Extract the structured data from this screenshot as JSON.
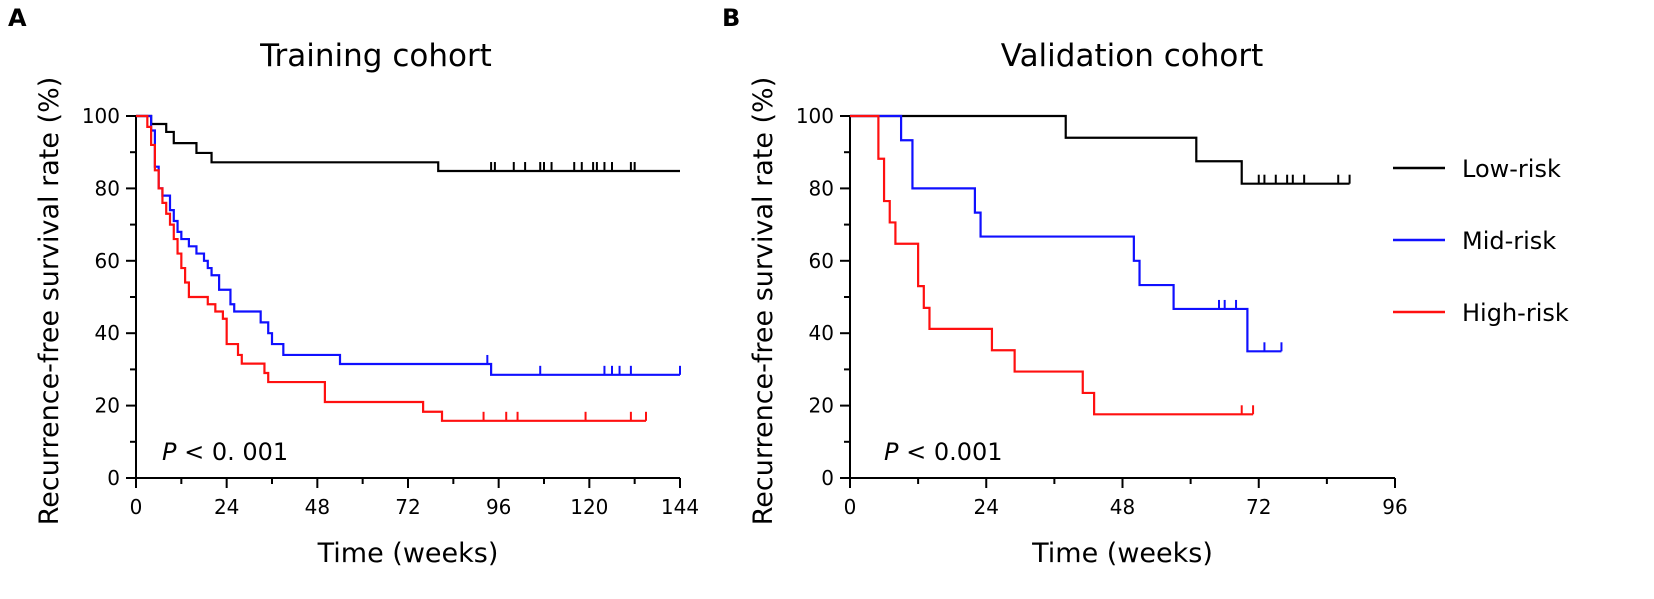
{
  "chart_data": [
    {
      "type": "line",
      "panel": "A",
      "title": "Training cohort",
      "xlabel": "Time (weeks)",
      "ylabel": "Recurrence-free survival rate (%)",
      "xlim": [
        0,
        144
      ],
      "ylim": [
        0,
        100
      ],
      "xticks": [
        0,
        24,
        48,
        72,
        96,
        120,
        144
      ],
      "yticks": [
        0,
        20,
        40,
        60,
        80,
        100
      ],
      "annotation": {
        "italic": "P",
        "text": " < 0. 001"
      },
      "series": [
        {
          "name": "Low-risk",
          "color": "#000000",
          "steps": [
            [
              0,
              100
            ],
            [
              4,
              97.8
            ],
            [
              8,
              95.6
            ],
            [
              10,
              92.5
            ],
            [
              16,
              89.8
            ],
            [
              20,
              87.2
            ],
            [
              80,
              84.8
            ],
            [
              144,
              84.8
            ]
          ],
          "censors": [
            94,
            95,
            100,
            103,
            107,
            108,
            110,
            116,
            118,
            121,
            122,
            124,
            126,
            131,
            132
          ]
        },
        {
          "name": "Mid-risk",
          "color": "#1010ff",
          "steps": [
            [
              0,
              100
            ],
            [
              4,
              96
            ],
            [
              5,
              86
            ],
            [
              6,
              80
            ],
            [
              7,
              78
            ],
            [
              9,
              74
            ],
            [
              10,
              71
            ],
            [
              11,
              68
            ],
            [
              12,
              66
            ],
            [
              14,
              64
            ],
            [
              16,
              62
            ],
            [
              18,
              60
            ],
            [
              19,
              58
            ],
            [
              20,
              56
            ],
            [
              22,
              52
            ],
            [
              25,
              48
            ],
            [
              26,
              46
            ],
            [
              33,
              43
            ],
            [
              35,
              40
            ],
            [
              36,
              37
            ],
            [
              39,
              34
            ],
            [
              54,
              31.5
            ],
            [
              94,
              28.5
            ],
            [
              144,
              28.5
            ]
          ],
          "censors": [
            93,
            107,
            124,
            126,
            128,
            131,
            144
          ]
        },
        {
          "name": "High-risk",
          "color": "#ff1010",
          "steps": [
            [
              0,
              100
            ],
            [
              3,
              97
            ],
            [
              4,
              92
            ],
            [
              5,
              85
            ],
            [
              6,
              80
            ],
            [
              7,
              76
            ],
            [
              8,
              73
            ],
            [
              9,
              70
            ],
            [
              10,
              66
            ],
            [
              11,
              62
            ],
            [
              12,
              58
            ],
            [
              13,
              54
            ],
            [
              14,
              50
            ],
            [
              19,
              48
            ],
            [
              21,
              46
            ],
            [
              23,
              44
            ],
            [
              24,
              37
            ],
            [
              27,
              34
            ],
            [
              28,
              31.6
            ],
            [
              34,
              29
            ],
            [
              35,
              26.5
            ],
            [
              50,
              21
            ],
            [
              76,
              18.3
            ],
            [
              81,
              15.8
            ],
            [
              135,
              15.8
            ]
          ],
          "censors": [
            92,
            98,
            101,
            119,
            131,
            135
          ]
        }
      ]
    },
    {
      "type": "line",
      "panel": "B",
      "title": "Validation cohort",
      "xlabel": "Time (weeks)",
      "ylabel": "Recurrence-free survival rate (%)",
      "xlim": [
        0,
        96
      ],
      "ylim": [
        0,
        100
      ],
      "xticks": [
        0,
        24,
        48,
        72,
        96
      ],
      "yticks": [
        0,
        20,
        40,
        60,
        80,
        100
      ],
      "annotation": {
        "italic": "P",
        "text": " < 0.001"
      },
      "legend": {
        "position": "top-right",
        "entries": [
          "Low-risk",
          "Mid-risk",
          "High-risk"
        ]
      },
      "series": [
        {
          "name": "Low-risk",
          "color": "#000000",
          "steps": [
            [
              0,
              100
            ],
            [
              38,
              94
            ],
            [
              61,
              87.5
            ],
            [
              69,
              81.3
            ],
            [
              88,
              81.3
            ]
          ],
          "censors": [
            72,
            73,
            75,
            77,
            78,
            80,
            86,
            88
          ]
        },
        {
          "name": "Mid-risk",
          "color": "#1010ff",
          "steps": [
            [
              0,
              100
            ],
            [
              9,
              93.3
            ],
            [
              11,
              80
            ],
            [
              22,
              73.3
            ],
            [
              23,
              66.7
            ],
            [
              50,
              60
            ],
            [
              51,
              53.3
            ],
            [
              57,
              46.7
            ],
            [
              70,
              35
            ],
            [
              76,
              35
            ]
          ],
          "censors": [
            65,
            66,
            68,
            73,
            76
          ]
        },
        {
          "name": "High-risk",
          "color": "#ff1010",
          "steps": [
            [
              0,
              100
            ],
            [
              5,
              88.2
            ],
            [
              6,
              76.5
            ],
            [
              7,
              70.6
            ],
            [
              8,
              64.7
            ],
            [
              12,
              53
            ],
            [
              13,
              47
            ],
            [
              14,
              41.2
            ],
            [
              25,
              35.3
            ],
            [
              29,
              29.4
            ],
            [
              41,
              23.5
            ],
            [
              43,
              17.6
            ],
            [
              71,
              17.6
            ]
          ],
          "censors": [
            69,
            71
          ]
        }
      ]
    }
  ]
}
